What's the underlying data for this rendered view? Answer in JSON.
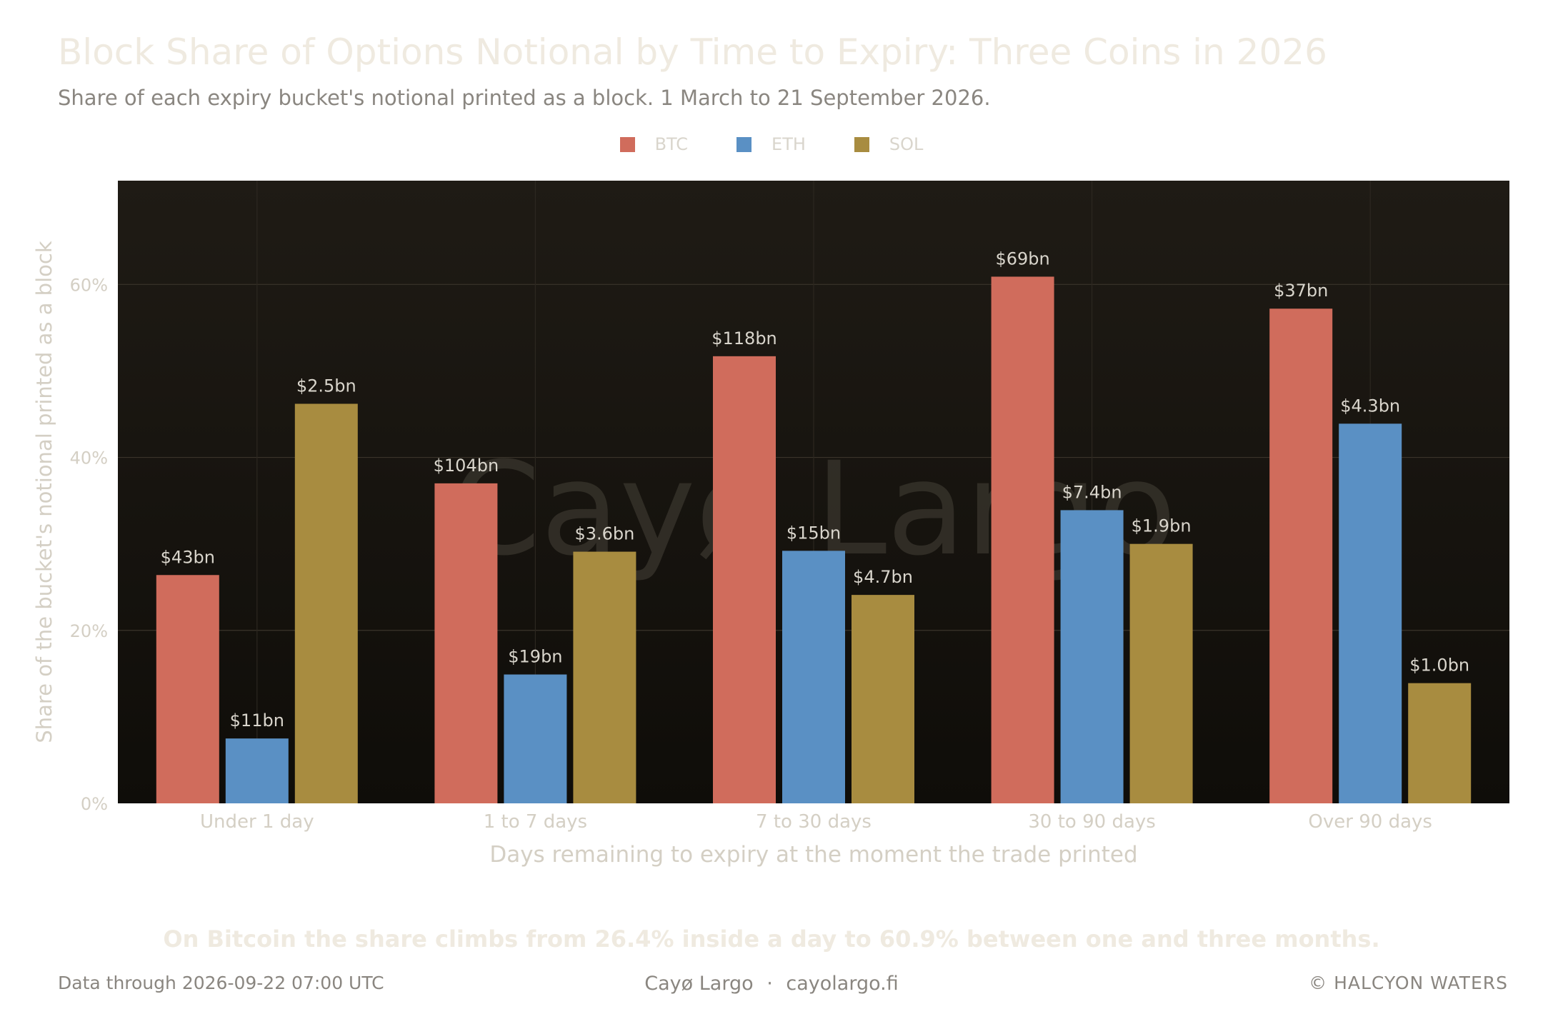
{
  "header": {
    "title": "Block Share of Options Notional by Time to Expiry: Three Coins in 2026",
    "subtitle": "Share of each expiry bucket's notional printed as a block. 1 March to 21 September 2026."
  },
  "legend": [
    {
      "label": "BTC",
      "color": "#d06c5c"
    },
    {
      "label": "ETH",
      "color": "#5a90c4"
    },
    {
      "label": "SOL",
      "color": "#a88c40"
    }
  ],
  "watermark": "Cayø Largo",
  "takeaway": "On Bitcoin the share climbs from 26.4% inside a day to 60.9% between one and three months.",
  "footer": {
    "data_through": "Data through 2026-09-22 07:00 UTC",
    "brand": "Cayø Largo",
    "separator": "·",
    "site": "cayolargo.fi",
    "copyright_symbol": "©",
    "credit": "HALCYON WATERS"
  },
  "chart_data": {
    "type": "bar",
    "xlabel": "Days remaining to expiry at the moment the trade printed",
    "ylabel": "Share of the bucket's notional printed as a block",
    "ylim": [
      0,
      72
    ],
    "yticks": [
      0,
      20,
      40,
      60
    ],
    "ytick_labels": [
      "0%",
      "20%",
      "40%",
      "60%"
    ],
    "grid": true,
    "legend_position": "top-center",
    "categories": [
      "Under 1 day",
      "1 to 7 days",
      "7 to 30 days",
      "30 to 90 days",
      "Over 90 days"
    ],
    "series": [
      {
        "name": "BTC",
        "color": "#d06c5c",
        "values": [
          26.4,
          37.0,
          51.7,
          60.9,
          57.2
        ],
        "labels": [
          "$43bn",
          "$104bn",
          "$118bn",
          "$69bn",
          "$37bn"
        ]
      },
      {
        "name": "ETH",
        "color": "#5a90c4",
        "values": [
          7.5,
          14.9,
          29.2,
          33.9,
          43.9
        ],
        "labels": [
          "$11bn",
          "$19bn",
          "$15bn",
          "$7.4bn",
          "$4.3bn"
        ]
      },
      {
        "name": "SOL",
        "color": "#a88c40",
        "values": [
          46.2,
          29.1,
          24.1,
          30.0,
          13.9
        ],
        "labels": [
          "$2.5bn",
          "$3.6bn",
          "$4.7bn",
          "$1.9bn",
          "$1.0bn"
        ]
      }
    ]
  }
}
